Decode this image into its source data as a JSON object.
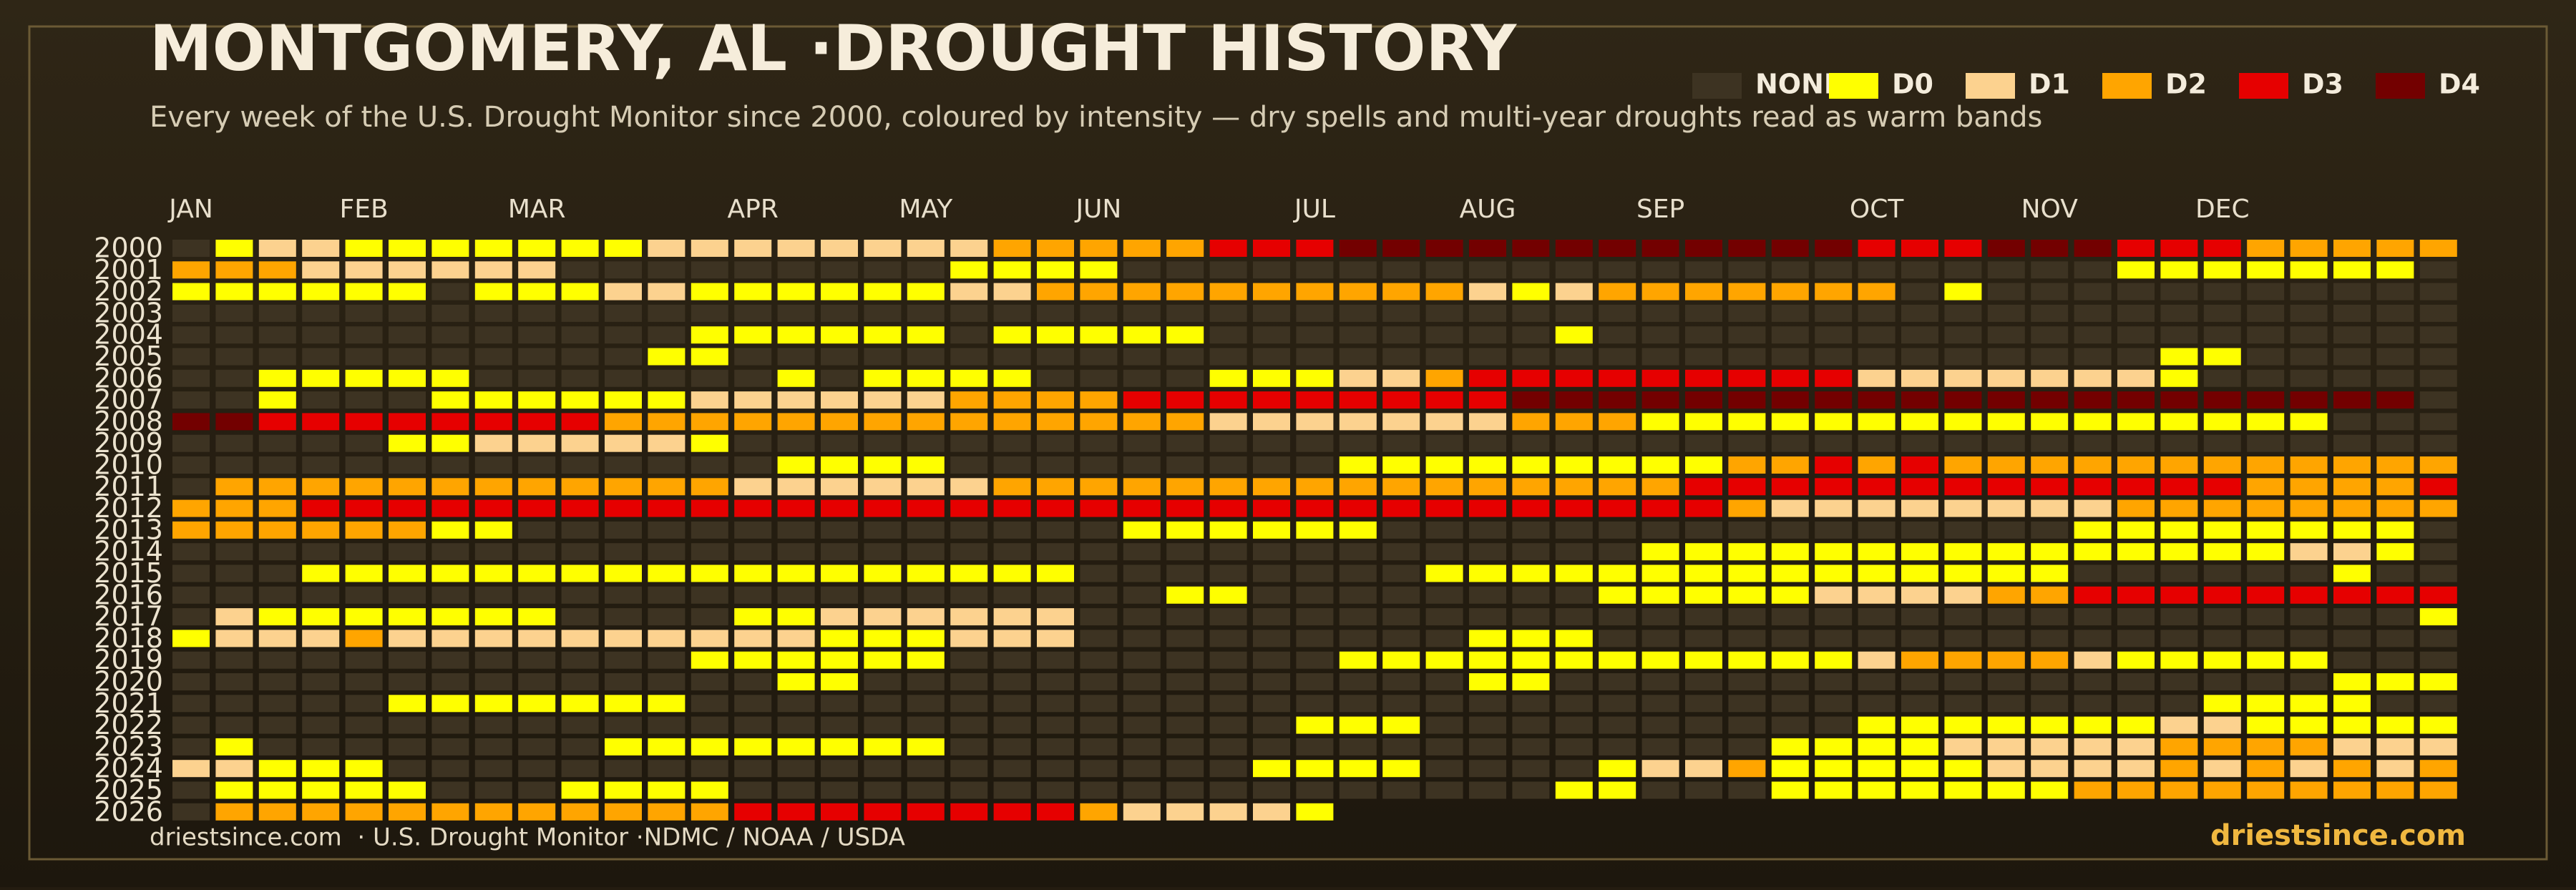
{
  "chart_data": {
    "type": "heatmap",
    "title": "MONTGOMERY, AL ·DROUGHT HISTORY",
    "subtitle": "Every week of the U.S. Drought Monitor since 2000, coloured by intensity — dry spells and multi-year droughts read as warm bands",
    "footer_left": "driestsince.com  · U.S. Drought Monitor ·NDMC / NOAA / USDA",
    "footer_right": "driestsince.com",
    "levels": [
      {
        "name": "NONE",
        "color": "#3d3322"
      },
      {
        "name": "D0",
        "color": "#ffff00"
      },
      {
        "name": "D1",
        "color": "#fcd28f"
      },
      {
        "name": "D2",
        "color": "#ffa500"
      },
      {
        "name": "D3",
        "color": "#e60000"
      },
      {
        "name": "D4",
        "color": "#730000"
      }
    ],
    "categories": [
      "JAN",
      null,
      null,
      null,
      "FEB",
      null,
      null,
      null,
      "MAR",
      null,
      null,
      null,
      null,
      "APR",
      null,
      null,
      null,
      "MAY",
      null,
      null,
      null,
      "JUN",
      null,
      null,
      null,
      null,
      "JUL",
      null,
      null,
      null,
      "AUG",
      null,
      null,
      null,
      "SEP",
      null,
      null,
      null,
      null,
      "OCT",
      null,
      null,
      null,
      "NOV",
      null,
      null,
      null,
      "DEC",
      null,
      null,
      null,
      null,
      null
    ],
    "y_categories": [
      "2000",
      "2001",
      "2002",
      "2003",
      "2004",
      "2005",
      "2006",
      "2007",
      "2008",
      "2009",
      "2010",
      "2011",
      "2012",
      "2013",
      "2014",
      "2015",
      "2016",
      "2017",
      "2018",
      "2019",
      "2020",
      "2021",
      "2022",
      "2023",
      "2024",
      "2025",
      "2026"
    ],
    "values": [
      [
        0,
        1,
        2,
        2,
        1,
        1,
        1,
        1,
        1,
        1,
        1,
        2,
        2,
        2,
        2,
        2,
        2,
        2,
        2,
        3,
        3,
        3,
        3,
        3,
        4,
        4,
        4,
        5,
        5,
        5,
        5,
        5,
        5,
        5,
        5,
        5,
        5,
        5,
        5,
        4,
        4,
        4,
        5,
        5,
        5,
        4,
        4,
        4,
        3,
        3,
        3,
        3,
        3
      ],
      [
        3,
        3,
        3,
        2,
        2,
        2,
        2,
        2,
        2,
        0,
        0,
        0,
        0,
        0,
        0,
        0,
        0,
        0,
        1,
        1,
        1,
        1,
        0,
        0,
        0,
        0,
        0,
        0,
        0,
        0,
        0,
        0,
        0,
        0,
        0,
        0,
        0,
        0,
        0,
        0,
        0,
        0,
        0,
        0,
        0,
        1,
        1,
        1,
        1,
        1,
        1,
        1,
        0
      ],
      [
        1,
        1,
        1,
        1,
        1,
        1,
        0,
        1,
        1,
        1,
        2,
        2,
        1,
        1,
        1,
        1,
        1,
        1,
        2,
        2,
        3,
        3,
        3,
        3,
        3,
        3,
        3,
        3,
        3,
        3,
        2,
        1,
        2,
        3,
        3,
        3,
        3,
        3,
        3,
        3,
        0,
        1,
        0,
        0,
        0,
        0,
        0,
        0,
        0,
        0,
        0,
        0,
        0
      ],
      [
        0,
        0,
        0,
        0,
        0,
        0,
        0,
        0,
        0,
        0,
        0,
        0,
        0,
        0,
        0,
        0,
        0,
        0,
        0,
        0,
        0,
        0,
        0,
        0,
        0,
        0,
        0,
        0,
        0,
        0,
        0,
        0,
        0,
        0,
        0,
        0,
        0,
        0,
        0,
        0,
        0,
        0,
        0,
        0,
        0,
        0,
        0,
        0,
        0,
        0,
        0,
        0,
        0
      ],
      [
        0,
        0,
        0,
        0,
        0,
        0,
        0,
        0,
        0,
        0,
        0,
        0,
        1,
        1,
        1,
        1,
        1,
        1,
        0,
        1,
        1,
        1,
        1,
        1,
        0,
        0,
        0,
        0,
        0,
        0,
        0,
        0,
        1,
        0,
        0,
        0,
        0,
        0,
        0,
        0,
        0,
        0,
        0,
        0,
        0,
        0,
        0,
        0,
        0,
        0,
        0,
        0,
        0
      ],
      [
        0,
        0,
        0,
        0,
        0,
        0,
        0,
        0,
        0,
        0,
        0,
        1,
        1,
        0,
        0,
        0,
        0,
        0,
        0,
        0,
        0,
        0,
        0,
        0,
        0,
        0,
        0,
        0,
        0,
        0,
        0,
        0,
        0,
        0,
        0,
        0,
        0,
        0,
        0,
        0,
        0,
        0,
        0,
        0,
        0,
        0,
        1,
        1,
        0,
        0,
        0,
        0,
        0
      ],
      [
        0,
        0,
        1,
        1,
        1,
        1,
        1,
        0,
        0,
        0,
        0,
        0,
        0,
        0,
        1,
        0,
        1,
        1,
        1,
        1,
        0,
        0,
        0,
        0,
        1,
        1,
        1,
        2,
        2,
        3,
        4,
        4,
        4,
        4,
        4,
        4,
        4,
        4,
        4,
        2,
        2,
        2,
        2,
        2,
        2,
        2,
        1,
        0,
        0,
        0,
        0,
        0,
        0
      ],
      [
        0,
        0,
        1,
        0,
        0,
        0,
        1,
        1,
        1,
        1,
        1,
        1,
        2,
        2,
        2,
        2,
        2,
        2,
        3,
        3,
        3,
        3,
        4,
        4,
        4,
        4,
        4,
        4,
        4,
        4,
        4,
        5,
        5,
        5,
        5,
        5,
        5,
        5,
        5,
        5,
        5,
        5,
        5,
        5,
        5,
        5,
        5,
        5,
        5,
        5,
        5,
        5,
        0
      ],
      [
        5,
        5,
        4,
        4,
        4,
        4,
        4,
        4,
        4,
        4,
        3,
        3,
        3,
        3,
        3,
        3,
        3,
        3,
        3,
        3,
        3,
        3,
        3,
        3,
        2,
        2,
        2,
        2,
        2,
        2,
        2,
        3,
        3,
        3,
        1,
        1,
        1,
        1,
        1,
        1,
        1,
        1,
        1,
        1,
        1,
        1,
        1,
        1,
        1,
        1,
        0,
        0,
        0
      ],
      [
        0,
        0,
        0,
        0,
        0,
        1,
        1,
        2,
        2,
        2,
        2,
        2,
        1,
        0,
        0,
        0,
        0,
        0,
        0,
        0,
        0,
        0,
        0,
        0,
        0,
        0,
        0,
        0,
        0,
        0,
        0,
        0,
        0,
        0,
        0,
        0,
        0,
        0,
        0,
        0,
        0,
        0,
        0,
        0,
        0,
        0,
        0,
        0,
        0,
        0,
        0,
        0,
        0
      ],
      [
        0,
        0,
        0,
        0,
        0,
        0,
        0,
        0,
        0,
        0,
        0,
        0,
        0,
        0,
        1,
        1,
        1,
        1,
        0,
        0,
        0,
        0,
        0,
        0,
        0,
        0,
        0,
        1,
        1,
        1,
        1,
        1,
        1,
        1,
        1,
        1,
        3,
        3,
        4,
        3,
        4,
        3,
        3,
        3,
        3,
        3,
        3,
        3,
        3,
        3,
        3,
        3,
        3
      ],
      [
        0,
        3,
        3,
        3,
        3,
        3,
        3,
        3,
        3,
        3,
        3,
        3,
        3,
        2,
        2,
        2,
        2,
        2,
        2,
        3,
        3,
        3,
        3,
        3,
        3,
        3,
        3,
        3,
        3,
        3,
        3,
        3,
        3,
        3,
        3,
        4,
        4,
        4,
        4,
        4,
        4,
        4,
        4,
        4,
        4,
        4,
        4,
        4,
        3,
        3,
        3,
        3,
        4
      ],
      [
        3,
        3,
        3,
        4,
        4,
        4,
        4,
        4,
        4,
        4,
        4,
        4,
        4,
        4,
        4,
        4,
        4,
        4,
        4,
        4,
        4,
        4,
        4,
        4,
        4,
        4,
        4,
        4,
        4,
        4,
        4,
        4,
        4,
        4,
        4,
        4,
        3,
        2,
        2,
        2,
        2,
        2,
        2,
        2,
        2,
        3,
        3,
        3,
        3,
        3,
        3,
        3,
        3
      ],
      [
        3,
        3,
        3,
        3,
        3,
        3,
        1,
        1,
        0,
        0,
        0,
        0,
        0,
        0,
        0,
        0,
        0,
        0,
        0,
        0,
        0,
        0,
        1,
        1,
        1,
        1,
        1,
        1,
        0,
        0,
        0,
        0,
        0,
        0,
        0,
        0,
        0,
        0,
        0,
        0,
        0,
        0,
        0,
        0,
        1,
        1,
        1,
        1,
        1,
        1,
        1,
        1,
        0
      ],
      [
        0,
        0,
        0,
        0,
        0,
        0,
        0,
        0,
        0,
        0,
        0,
        0,
        0,
        0,
        0,
        0,
        0,
        0,
        0,
        0,
        0,
        0,
        0,
        0,
        0,
        0,
        0,
        0,
        0,
        0,
        0,
        0,
        0,
        0,
        1,
        1,
        1,
        1,
        1,
        1,
        1,
        1,
        1,
        1,
        1,
        1,
        1,
        1,
        1,
        2,
        2,
        1,
        0
      ],
      [
        0,
        0,
        0,
        1,
        1,
        1,
        1,
        1,
        1,
        1,
        1,
        1,
        1,
        1,
        1,
        1,
        1,
        1,
        1,
        1,
        1,
        0,
        0,
        0,
        0,
        0,
        0,
        0,
        0,
        1,
        1,
        1,
        1,
        1,
        1,
        1,
        1,
        1,
        1,
        1,
        1,
        1,
        1,
        1,
        0,
        0,
        0,
        0,
        0,
        0,
        1,
        0,
        0
      ],
      [
        0,
        0,
        0,
        0,
        0,
        0,
        0,
        0,
        0,
        0,
        0,
        0,
        0,
        0,
        0,
        0,
        0,
        0,
        0,
        0,
        0,
        0,
        0,
        1,
        1,
        0,
        0,
        0,
        0,
        0,
        0,
        0,
        0,
        1,
        1,
        1,
        1,
        1,
        2,
        2,
        2,
        2,
        3,
        3,
        4,
        4,
        4,
        4,
        4,
        4,
        4,
        4,
        4
      ],
      [
        0,
        2,
        1,
        1,
        1,
        1,
        1,
        1,
        1,
        0,
        0,
        0,
        0,
        1,
        1,
        2,
        2,
        2,
        2,
        2,
        2,
        0,
        0,
        0,
        0,
        0,
        0,
        0,
        0,
        0,
        0,
        0,
        0,
        0,
        0,
        0,
        0,
        0,
        0,
        0,
        0,
        0,
        0,
        0,
        0,
        0,
        0,
        0,
        0,
        0,
        0,
        0,
        1
      ],
      [
        1,
        2,
        2,
        2,
        3,
        2,
        2,
        2,
        2,
        2,
        2,
        2,
        2,
        2,
        2,
        1,
        1,
        1,
        2,
        2,
        2,
        0,
        0,
        0,
        0,
        0,
        0,
        0,
        0,
        0,
        1,
        1,
        1,
        0,
        0,
        0,
        0,
        0,
        0,
        0,
        0,
        0,
        0,
        0,
        0,
        0,
        0,
        0,
        0,
        0,
        0,
        0,
        0
      ],
      [
        0,
        0,
        0,
        0,
        0,
        0,
        0,
        0,
        0,
        0,
        0,
        0,
        1,
        1,
        1,
        1,
        1,
        1,
        0,
        0,
        0,
        0,
        0,
        0,
        0,
        0,
        0,
        1,
        1,
        1,
        1,
        1,
        1,
        1,
        1,
        1,
        1,
        1,
        1,
        2,
        3,
        3,
        3,
        3,
        2,
        1,
        1,
        1,
        1,
        1,
        0,
        0,
        0
      ],
      [
        0,
        0,
        0,
        0,
        0,
        0,
        0,
        0,
        0,
        0,
        0,
        0,
        0,
        0,
        1,
        1,
        0,
        0,
        0,
        0,
        0,
        0,
        0,
        0,
        0,
        0,
        0,
        0,
        0,
        0,
        1,
        1,
        0,
        0,
        0,
        0,
        0,
        0,
        0,
        0,
        0,
        0,
        0,
        0,
        0,
        0,
        0,
        0,
        0,
        0,
        1,
        1,
        1
      ],
      [
        0,
        0,
        0,
        0,
        0,
        1,
        1,
        1,
        1,
        1,
        1,
        1,
        0,
        0,
        0,
        0,
        0,
        0,
        0,
        0,
        0,
        0,
        0,
        0,
        0,
        0,
        0,
        0,
        0,
        0,
        0,
        0,
        0,
        0,
        0,
        0,
        0,
        0,
        0,
        0,
        0,
        0,
        0,
        0,
        0,
        0,
        0,
        1,
        1,
        1,
        1,
        0,
        0
      ],
      [
        0,
        0,
        0,
        0,
        0,
        0,
        0,
        0,
        0,
        0,
        0,
        0,
        0,
        0,
        0,
        0,
        0,
        0,
        0,
        0,
        0,
        0,
        0,
        0,
        0,
        0,
        1,
        1,
        1,
        0,
        0,
        0,
        0,
        0,
        0,
        0,
        0,
        0,
        0,
        1,
        1,
        1,
        1,
        1,
        1,
        1,
        2,
        2,
        1,
        1,
        1,
        1,
        1
      ],
      [
        0,
        1,
        0,
        0,
        0,
        0,
        0,
        0,
        0,
        0,
        1,
        1,
        1,
        1,
        1,
        1,
        1,
        1,
        0,
        0,
        0,
        0,
        0,
        0,
        0,
        0,
        0,
        0,
        0,
        0,
        0,
        0,
        0,
        0,
        0,
        0,
        0,
        1,
        1,
        1,
        1,
        2,
        2,
        2,
        2,
        2,
        3,
        3,
        3,
        3,
        2,
        2,
        2
      ],
      [
        2,
        2,
        1,
        1,
        1,
        0,
        0,
        0,
        0,
        0,
        0,
        0,
        0,
        0,
        0,
        0,
        0,
        0,
        0,
        0,
        0,
        0,
        0,
        0,
        0,
        1,
        1,
        1,
        1,
        0,
        0,
        0,
        0,
        1,
        2,
        2,
        3,
        1,
        1,
        1,
        1,
        1,
        2,
        2,
        2,
        2,
        3,
        2,
        3,
        2,
        3,
        2,
        3
      ],
      [
        0,
        1,
        1,
        1,
        1,
        1,
        0,
        0,
        0,
        1,
        1,
        1,
        1,
        0,
        0,
        0,
        0,
        0,
        0,
        0,
        0,
        0,
        0,
        0,
        0,
        0,
        0,
        0,
        0,
        0,
        0,
        0,
        1,
        1,
        0,
        0,
        0,
        1,
        1,
        1,
        1,
        1,
        1,
        1,
        3,
        3,
        3,
        3,
        3,
        3,
        3,
        3,
        3
      ],
      [
        0,
        3,
        3,
        3,
        3,
        3,
        3,
        3,
        3,
        3,
        3,
        3,
        3,
        4,
        4,
        4,
        4,
        4,
        4,
        4,
        4,
        3,
        2,
        2,
        2,
        2,
        1,
        null,
        null,
        null,
        null,
        null,
        null,
        null,
        null,
        null,
        null,
        null,
        null,
        null,
        null,
        null,
        null,
        null,
        null,
        null,
        null,
        null,
        null,
        null,
        null,
        null,
        null
      ]
    ]
  }
}
